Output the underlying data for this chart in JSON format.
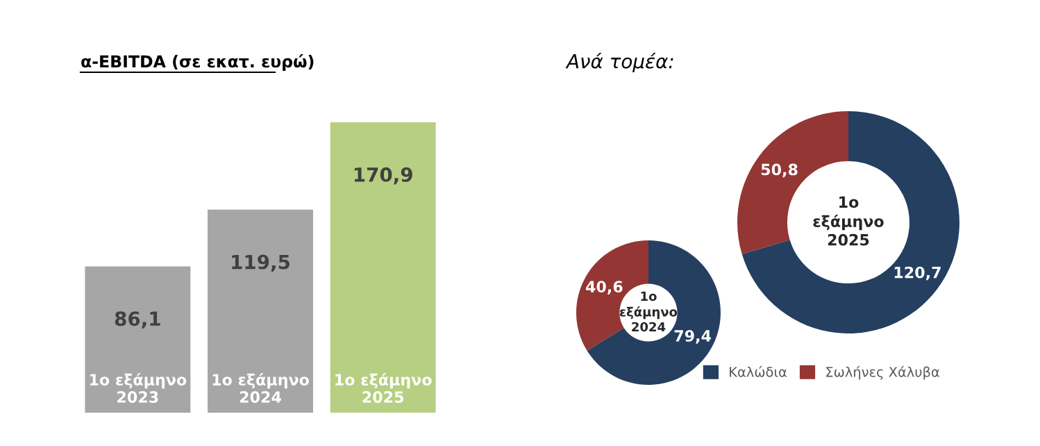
{
  "chart_data": [
    {
      "type": "bar",
      "title": "α-EBITDA (σε εκατ. ευρώ)",
      "categories": [
        "1ο εξάμηνο\n2023",
        "1ο εξάμηνο\n2024",
        "1ο εξάμηνο\n2025"
      ],
      "values": [
        86.1,
        119.5,
        170.9
      ],
      "colors": [
        "#a6a6a6",
        "#a6a6a6",
        "#b6cf82"
      ],
      "value_labels": [
        "86,1",
        "119,5",
        "170,9"
      ]
    },
    {
      "type": "donut",
      "title": "Ανά τομέα:",
      "categories": [
        "Καλώδια",
        "Σωλήνες Χάλυβα"
      ],
      "values": [
        79.4,
        40.6
      ],
      "colors": [
        "#243f60",
        "#943634"
      ],
      "value_labels": [
        "79,4",
        "40,6"
      ],
      "annotations": [
        "1ο\nεξάμηνο\n2024"
      ],
      "legend": "bottom right"
    },
    {
      "type": "donut",
      "categories": [
        null,
        null
      ],
      "values": [
        120.7,
        50.8
      ],
      "colors": [
        "#243f60",
        "#943634"
      ],
      "value_labels": [
        "120,7",
        "50,8"
      ],
      "annotations": [
        "1ο\nεξάμηνο\n2025"
      ]
    }
  ]
}
